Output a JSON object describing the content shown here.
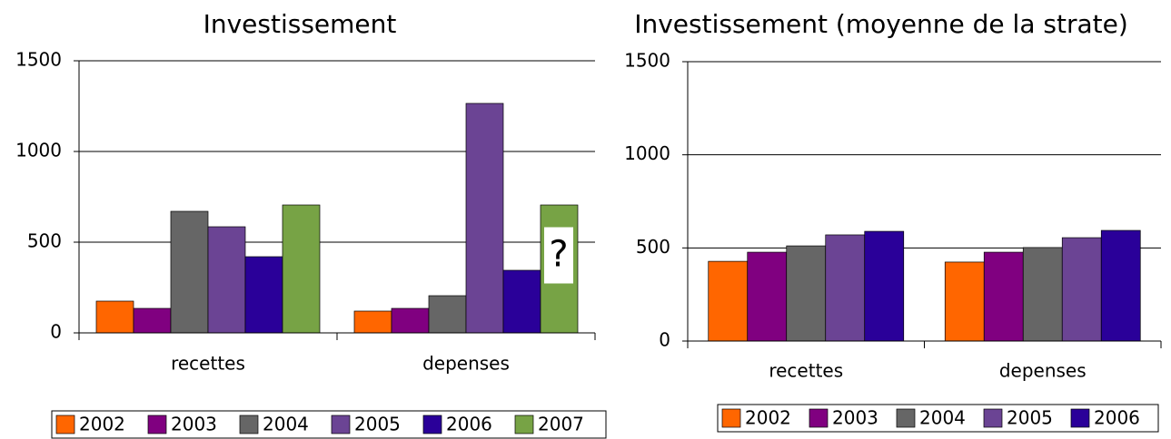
{
  "chart_data": [
    {
      "type": "bar",
      "title": "Investissement",
      "categories": [
        "recettes",
        "depenses"
      ],
      "series": [
        {
          "name": "2002",
          "color": "#ff6600",
          "values": [
            175,
            120
          ]
        },
        {
          "name": "2003",
          "color": "#800080",
          "values": [
            135,
            135
          ]
        },
        {
          "name": "2004",
          "color": "#666666",
          "values": [
            670,
            205
          ]
        },
        {
          "name": "2005",
          "color": "#6b4494",
          "values": [
            585,
            1265
          ]
        },
        {
          "name": "2006",
          "color": "#2a0099",
          "values": [
            420,
            345
          ]
        },
        {
          "name": "2007",
          "color": "#77a345",
          "values": [
            705,
            705
          ]
        }
      ],
      "annotation": "?",
      "ylim": [
        0,
        1500
      ],
      "yticks": [
        0,
        500,
        1000,
        1500
      ],
      "grid": true,
      "legend": "bottom"
    },
    {
      "type": "bar",
      "title": "Investissement (moyenne de la strate)",
      "categories": [
        "recettes",
        "depenses"
      ],
      "series": [
        {
          "name": "2002",
          "color": "#ff6600",
          "values": [
            428,
            424
          ]
        },
        {
          "name": "2003",
          "color": "#800080",
          "values": [
            477,
            477
          ]
        },
        {
          "name": "2004",
          "color": "#666666",
          "values": [
            511,
            502
          ]
        },
        {
          "name": "2005",
          "color": "#6b4494",
          "values": [
            570,
            555
          ]
        },
        {
          "name": "2006",
          "color": "#2a0099",
          "values": [
            589,
            594
          ]
        }
      ],
      "ylim": [
        0,
        1500
      ],
      "yticks": [
        0,
        500,
        1000,
        1500
      ],
      "grid": true,
      "legend": "bottom"
    }
  ]
}
